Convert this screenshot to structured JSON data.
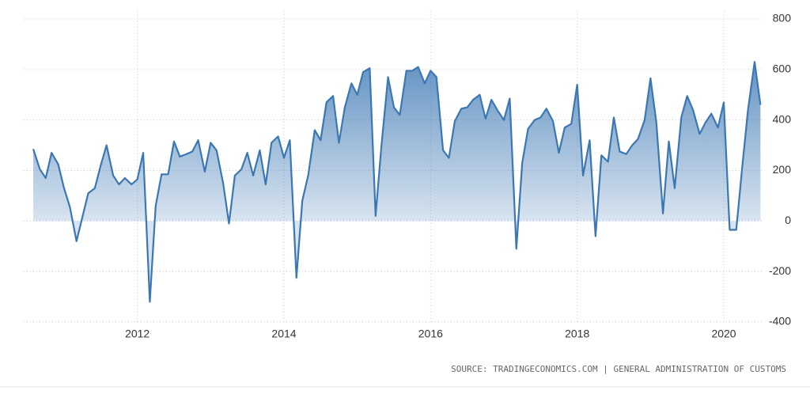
{
  "chart_data": {
    "type": "area",
    "source": "SOURCE: TRADINGECONOMICS.COM | GENERAL ADMINISTRATION OF CUSTOMS",
    "x": [
      2010.58,
      2010.67,
      2010.75,
      2010.83,
      2010.92,
      2011.0,
      2011.08,
      2011.17,
      2011.25,
      2011.33,
      2011.42,
      2011.5,
      2011.58,
      2011.67,
      2011.75,
      2011.83,
      2011.92,
      2012.0,
      2012.08,
      2012.17,
      2012.25,
      2012.33,
      2012.42,
      2012.5,
      2012.58,
      2012.67,
      2012.75,
      2012.83,
      2012.92,
      2013.0,
      2013.08,
      2013.17,
      2013.25,
      2013.33,
      2013.42,
      2013.5,
      2013.58,
      2013.67,
      2013.75,
      2013.83,
      2013.92,
      2014.0,
      2014.08,
      2014.17,
      2014.25,
      2014.33,
      2014.42,
      2014.5,
      2014.58,
      2014.67,
      2014.75,
      2014.83,
      2014.92,
      2015.0,
      2015.08,
      2015.17,
      2015.25,
      2015.33,
      2015.42,
      2015.5,
      2015.58,
      2015.67,
      2015.75,
      2015.83,
      2015.92,
      2016.0,
      2016.08,
      2016.17,
      2016.25,
      2016.33,
      2016.42,
      2016.5,
      2016.58,
      2016.67,
      2016.75,
      2016.83,
      2016.92,
      2017.0,
      2017.08,
      2017.17,
      2017.25,
      2017.33,
      2017.42,
      2017.5,
      2017.58,
      2017.67,
      2017.75,
      2017.83,
      2017.92,
      2018.0,
      2018.08,
      2018.17,
      2018.25,
      2018.33,
      2018.42,
      2018.5,
      2018.58,
      2018.67,
      2018.75,
      2018.83,
      2018.92,
      2019.0,
      2019.08,
      2019.17,
      2019.25,
      2019.33,
      2019.42,
      2019.5,
      2019.58,
      2019.67,
      2019.75,
      2019.83,
      2019.92,
      2020.0,
      2020.08,
      2020.17,
      2020.25,
      2020.33,
      2020.42,
      2020.5
    ],
    "series": [
      {
        "color": "#3b77b3",
        "values": [
          285,
          205,
          170,
          270,
          225,
          130,
          55,
          -80,
          15,
          110,
          130,
          220,
          300,
          180,
          145,
          170,
          145,
          165,
          270,
          -320,
          60,
          185,
          185,
          315,
          255,
          265,
          275,
          320,
          195,
          310,
          280,
          150,
          -10,
          180,
          205,
          270,
          180,
          280,
          145,
          310,
          335,
          250,
          320,
          -225,
          80,
          180,
          360,
          320,
          470,
          495,
          310,
          450,
          545,
          500,
          590,
          605,
          20,
          300,
          570,
          450,
          420,
          595,
          595,
          610,
          545,
          595,
          570,
          280,
          250,
          395,
          445,
          450,
          480,
          500,
          405,
          480,
          435,
          400,
          485,
          -110,
          230,
          365,
          400,
          410,
          445,
          395,
          270,
          370,
          385,
          540,
          180,
          320,
          -60,
          260,
          235,
          410,
          275,
          265,
          300,
          325,
          400,
          565,
          390,
          30,
          315,
          130,
          410,
          495,
          440,
          345,
          390,
          425,
          370,
          470,
          -35,
          -35,
          210,
          440,
          630,
          460
        ]
      }
    ],
    "xlim": [
      2010.45,
      2020.55
    ],
    "xticks": [
      2012,
      2014,
      2016,
      2018,
      2020
    ],
    "ylim": [
      -400,
      800
    ],
    "yticks": [
      -400,
      -200,
      0,
      200,
      400,
      600,
      800
    ],
    "grid": true
  }
}
